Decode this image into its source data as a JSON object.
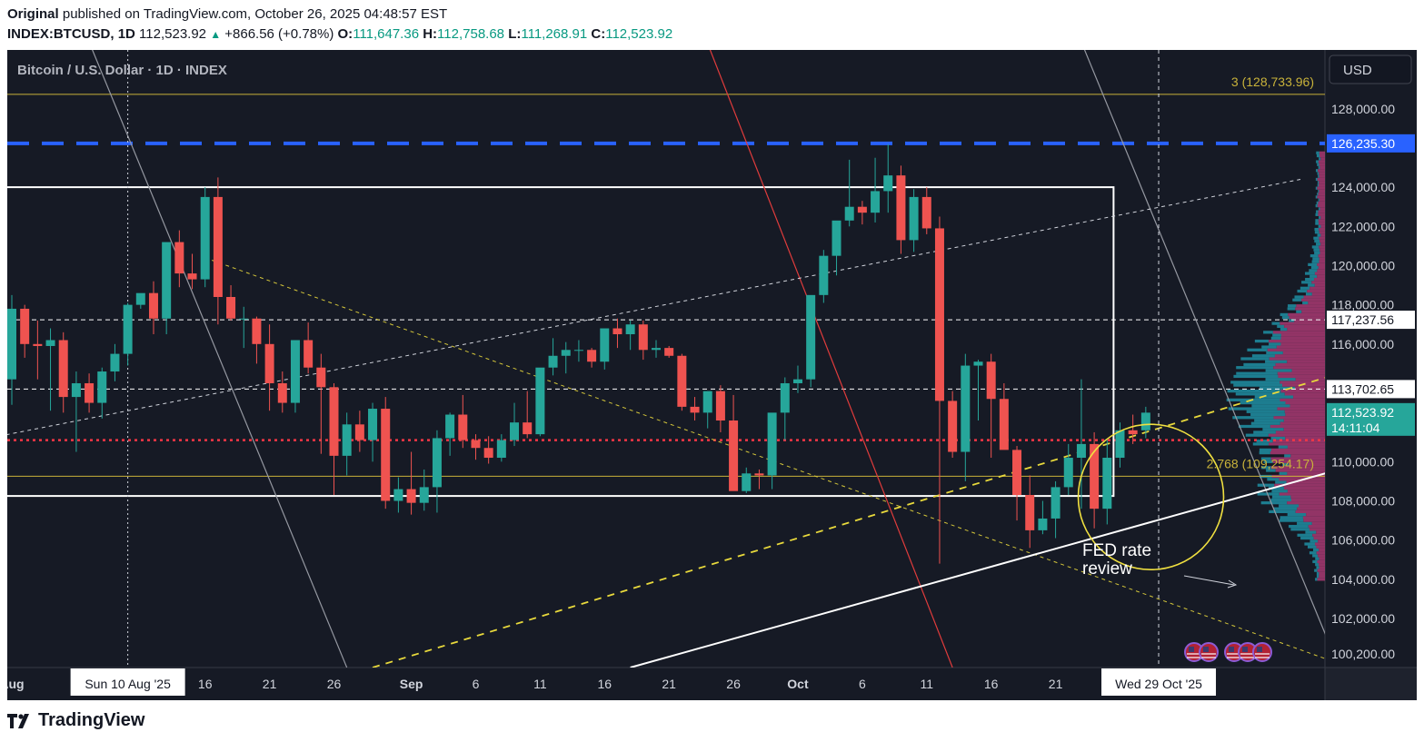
{
  "header": {
    "publisher_bold": "Original",
    "published_text": "published on TradingView.com, October 26, 2025 04:48:57 EST",
    "symbol": "INDEX:BTCUSD",
    "interval": "1D",
    "last": "112,523.92",
    "change": "+866.56 (+0.78%)",
    "open_label": "O:",
    "open": "111,647.36",
    "high_label": "H:",
    "high": "112,758.68",
    "low_label": "L:",
    "low": "111,268.91",
    "close_label": "C:",
    "close": "112,523.92"
  },
  "footer": {
    "brand": "TradingView"
  },
  "colors": {
    "background": "#161a25",
    "up": "#26a69a",
    "down": "#ef5350",
    "header_up": "#089981",
    "fib": "#c8b23a",
    "blue_level": "#2962ff",
    "red_level": "#f23645",
    "box": "#ffffff",
    "profile_up": "#1e8fa3",
    "profile_down": "#a83a72"
  },
  "chart_data": {
    "type": "candlestick",
    "title": "Bitcoin / U.S. Dollar · 1D · INDEX",
    "currency_button": "USD",
    "ylim": [
      99500,
      131000
    ],
    "y_ticks": [
      "100,200.00",
      "102,000.00",
      "104,000.00",
      "106,000.00",
      "108,000.00",
      "110,000.00",
      "116,000.00",
      "118,000.00",
      "120,000.00",
      "122,000.00",
      "124,000.00",
      "128,000.00"
    ],
    "x_labels": [
      "Aug",
      "16",
      "21",
      "26",
      "Sep",
      "6",
      "11",
      "16",
      "21",
      "26",
      "Oct",
      "6",
      "11",
      "16",
      "21"
    ],
    "x_label_days": [
      0,
      15,
      20,
      25,
      31,
      36,
      41,
      46,
      51,
      56,
      61,
      66,
      71,
      76,
      81
    ],
    "crosshair_x": {
      "label": "Sun 10 Aug '25",
      "day": 9
    },
    "future_x": {
      "label": "Wed 29 Oct '25",
      "day": 89
    },
    "candles_ohlc": [
      [
        114200,
        118500,
        112900,
        117800
      ],
      [
        117800,
        118000,
        115300,
        116000
      ],
      [
        116000,
        117200,
        114200,
        115900
      ],
      [
        115900,
        116800,
        112600,
        116200
      ],
      [
        116200,
        116600,
        112500,
        113300
      ],
      [
        113300,
        114600,
        110500,
        114000
      ],
      [
        114000,
        114500,
        112500,
        113000
      ],
      [
        113000,
        114800,
        112200,
        114600
      ],
      [
        114600,
        116000,
        114100,
        115500
      ],
      [
        115500,
        118100,
        114900,
        118000
      ],
      [
        118000,
        118500,
        117800,
        118600
      ],
      [
        118600,
        119200,
        116500,
        117300
      ],
      [
        117300,
        121000,
        116500,
        121200
      ],
      [
        121200,
        121800,
        118900,
        119600
      ],
      [
        119600,
        120600,
        118800,
        119300
      ],
      [
        119300,
        124000,
        118900,
        123500
      ],
      [
        123500,
        124500,
        117000,
        118400
      ],
      [
        118400,
        119000,
        117200,
        117300
      ],
      [
        117300,
        117900,
        115800,
        117300
      ],
      [
        117300,
        117400,
        115000,
        116000
      ],
      [
        116000,
        117000,
        112600,
        114000
      ],
      [
        114000,
        114600,
        112500,
        113000
      ],
      [
        113000,
        115500,
        112500,
        116200
      ],
      [
        116200,
        117100,
        114500,
        114800
      ],
      [
        114800,
        115500,
        110400,
        113800
      ],
      [
        113800,
        114000,
        108300,
        110300
      ],
      [
        110300,
        112500,
        109300,
        111900
      ],
      [
        111900,
        112600,
        110500,
        111100
      ],
      [
        111100,
        113000,
        110000,
        112700
      ],
      [
        112700,
        113300,
        107600,
        108000
      ],
      [
        108000,
        109200,
        107400,
        108600
      ],
      [
        108600,
        110500,
        107300,
        107900
      ],
      [
        107900,
        109600,
        107500,
        108700
      ],
      [
        108700,
        111600,
        107400,
        111200
      ],
      [
        111200,
        112500,
        110300,
        112400
      ],
      [
        112400,
        113400,
        110700,
        111100
      ],
      [
        111100,
        111400,
        110100,
        110700
      ],
      [
        110700,
        111300,
        109900,
        110200
      ],
      [
        110200,
        111400,
        110000,
        111100
      ],
      [
        111100,
        113000,
        110800,
        112000
      ],
      [
        112000,
        113600,
        111200,
        111400
      ],
      [
        111400,
        114500,
        111300,
        114800
      ],
      [
        114800,
        116300,
        114400,
        115400
      ],
      [
        115400,
        116100,
        114500,
        115700
      ],
      [
        115700,
        116200,
        115100,
        115700
      ],
      [
        115700,
        115800,
        114800,
        115100
      ],
      [
        115100,
        116700,
        114700,
        116800
      ],
      [
        116800,
        117300,
        115800,
        116500
      ],
      [
        116500,
        117200,
        115700,
        117000
      ],
      [
        117000,
        117200,
        115200,
        115700
      ],
      [
        115700,
        116200,
        115300,
        115800
      ],
      [
        115800,
        115900,
        115300,
        115400
      ],
      [
        115400,
        115500,
        112600,
        112800
      ],
      [
        112800,
        113300,
        112100,
        112500
      ],
      [
        112500,
        113100,
        111700,
        113600
      ],
      [
        113600,
        113900,
        111500,
        112100
      ],
      [
        112100,
        113400,
        108800,
        108500
      ],
      [
        108500,
        109700,
        108400,
        109400
      ],
      [
        109400,
        109600,
        108600,
        109300
      ],
      [
        109300,
        112300,
        108600,
        112500
      ],
      [
        112500,
        114300,
        111100,
        114000
      ],
      [
        114000,
        114900,
        113500,
        114200
      ],
      [
        114200,
        118400,
        113800,
        118500
      ],
      [
        118500,
        120800,
        118100,
        120500
      ],
      [
        120500,
        122000,
        119500,
        122300
      ],
      [
        122300,
        125400,
        122000,
        123000
      ],
      [
        123000,
        123300,
        122100,
        122700
      ],
      [
        122700,
        125500,
        122200,
        123800
      ],
      [
        123800,
        126200,
        122700,
        124600
      ],
      [
        124600,
        125100,
        120600,
        121300
      ],
      [
        121300,
        123900,
        120700,
        123500
      ],
      [
        123500,
        124000,
        121600,
        121900
      ],
      [
        121900,
        122500,
        104800,
        113100
      ],
      [
        113100,
        113600,
        110200,
        110500
      ],
      [
        110500,
        115500,
        109000,
        114900
      ],
      [
        114900,
        115200,
        112100,
        115100
      ],
      [
        115100,
        115500,
        110200,
        113200
      ],
      [
        113200,
        114000,
        111000,
        110600
      ],
      [
        110600,
        110800,
        107000,
        108300
      ],
      [
        108300,
        109300,
        105600,
        106500
      ],
      [
        106500,
        108000,
        106300,
        107100
      ],
      [
        107100,
        109000,
        106100,
        108700
      ],
      [
        108700,
        110900,
        108300,
        110200
      ],
      [
        110200,
        114200,
        107600,
        110900
      ],
      [
        110900,
        111500,
        106600,
        107600
      ],
      [
        107600,
        111100,
        106800,
        110200
      ],
      [
        110200,
        112000,
        109700,
        111600
      ],
      [
        111600,
        112400,
        110900,
        111400
      ],
      [
        111600,
        112800,
        111200,
        112500
      ]
    ],
    "horizontal_levels": [
      {
        "label": "3 (128,733.96)",
        "value": 128734,
        "style": "fib"
      },
      {
        "label": "126,235.30",
        "value": 126235,
        "style": "blue-dashed"
      },
      {
        "label": "117,237.56",
        "value": 117238,
        "style": "white-dashed"
      },
      {
        "label": "113,702.65",
        "value": 113703,
        "style": "white-dashed"
      },
      {
        "label": "2.768 (109,254.17)",
        "value": 109254,
        "style": "fib"
      }
    ],
    "last_price_label": {
      "price": "112,523.92",
      "countdown": "14:11:04",
      "value": 112524
    },
    "red_dotted_level": 111100,
    "box": {
      "top": 124000,
      "bottom": 108250,
      "day_start": -1,
      "day_end": 85.5
    },
    "annotation": {
      "line1": "FED rate",
      "line2": "review"
    }
  }
}
